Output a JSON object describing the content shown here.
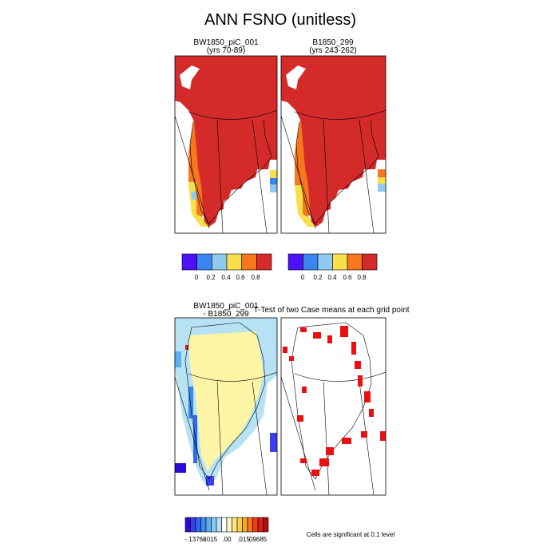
{
  "chart_data": {
    "type": "heatmap",
    "title": "ANN FSNO (unitless)",
    "panels": [
      {
        "id": "case1",
        "title_line1": "BW1850_piC_001",
        "title_line2": "(yrs 70-89)",
        "field": "Greenland annual mean snow fraction, mostly 0.8-1.0 over the ice sheet with 0.4-0.8 along the west and southwest margins"
      },
      {
        "id": "case2",
        "title_line1": "B1850_299",
        "title_line2": "(yrs 243-262)",
        "field": "Greenland annual mean snow fraction, mostly 0.8-1.0 over the ice sheet with 0.4-0.8 along the west and southwest margins"
      },
      {
        "id": "difference",
        "title_line1": "BW1850_piC_001",
        "title_line2": "- B1850_299",
        "field": "difference near 0 over interior, negative values along the west coast and margins"
      },
      {
        "id": "ttest",
        "title_line1": "T-Test of two Case means at each grid point",
        "title_line2": "",
        "note": "Cells are significant at 0.1 level"
      }
    ],
    "colorbars": [
      {
        "id": "case1-colorbar",
        "colors": [
          "#4b12f5",
          "#3a86f0",
          "#8fcbef",
          "#f9e04a",
          "#f7771e",
          "#d42a2a"
        ],
        "tick_labels": [
          "0",
          "0.2",
          "0.4",
          "0.6",
          "0.8"
        ]
      },
      {
        "id": "case2-colorbar",
        "colors": [
          "#4b12f5",
          "#3a86f0",
          "#8fcbef",
          "#f9e04a",
          "#f7771e",
          "#d42a2a"
        ],
        "tick_labels": [
          "0",
          "0.2",
          "0.4",
          "0.6",
          "0.8"
        ]
      },
      {
        "id": "difference-colorbar",
        "colors": [
          "#2a0bd8",
          "#3c3ef0",
          "#2f66f2",
          "#3e8bf4",
          "#5eaef2",
          "#89cbef",
          "#b6e2f3",
          "#ffffff",
          "#fff8c6",
          "#fde68a",
          "#fbcf3f",
          "#f9a825",
          "#f6761f",
          "#ee4016",
          "#d81d1d",
          "#b00e0e"
        ],
        "tick_labels": [
          "-.13768",
          "-.015",
          ".00",
          ".015",
          ".09685"
        ]
      }
    ],
    "colors": {
      "high_snow": "#d42a2a",
      "orange": "#f7771e",
      "yellow": "#f9e04a",
      "light_blue": "#8fcbef",
      "blue": "#3a86f0",
      "purple": "#4b12f5",
      "diff_pale": "#fdf5a6",
      "diff_neg": "#b6e2f3",
      "significant": "#e81010"
    }
  }
}
